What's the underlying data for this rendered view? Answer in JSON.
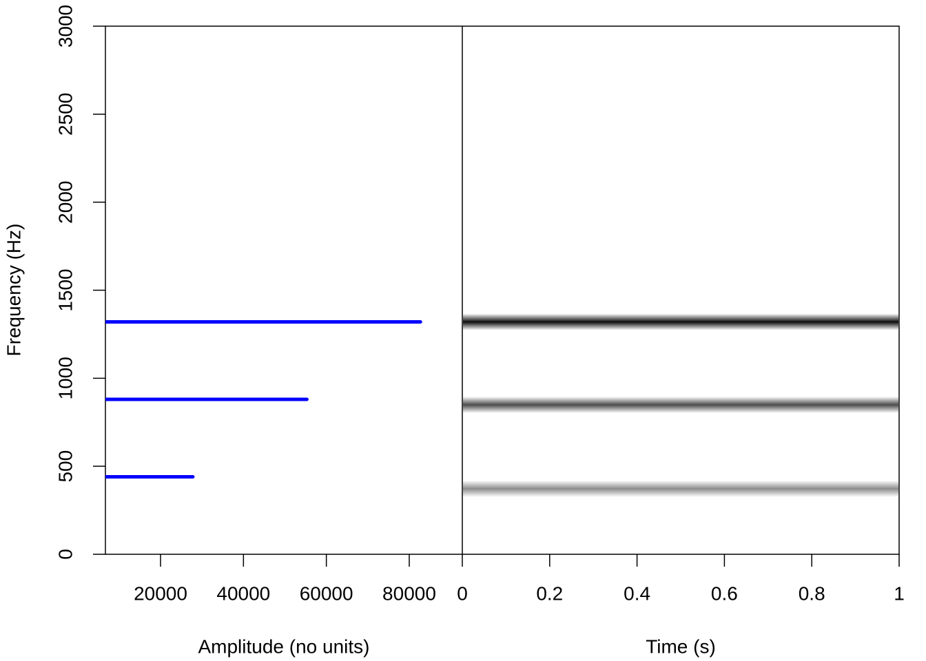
{
  "chart_data": [
    {
      "type": "segments",
      "xlabel": "Amplitude (no units)",
      "ylabel": "Frequency (Hz)",
      "y": [
        440,
        880,
        1320
      ],
      "values": [
        27800,
        55300,
        82700
      ],
      "color": "#0000ff",
      "xlim": [
        6700,
        92800
      ],
      "xticks": [
        20000,
        40000,
        60000,
        80000
      ],
      "ylim": [
        0,
        3000
      ],
      "yticks": [
        0,
        500,
        1000,
        1500,
        2000,
        2500,
        3000
      ]
    },
    {
      "type": "spectrogram",
      "xlabel": "Time (s)",
      "y": [
        372,
        849,
        1320
      ],
      "values": [
        0.45,
        0.7,
        0.95
      ],
      "color": "#000000",
      "xlim": [
        0,
        1
      ],
      "xticks": [
        0,
        0.2,
        0.4,
        0.6,
        0.8,
        1
      ],
      "ylim": [
        0,
        3000
      ]
    }
  ]
}
